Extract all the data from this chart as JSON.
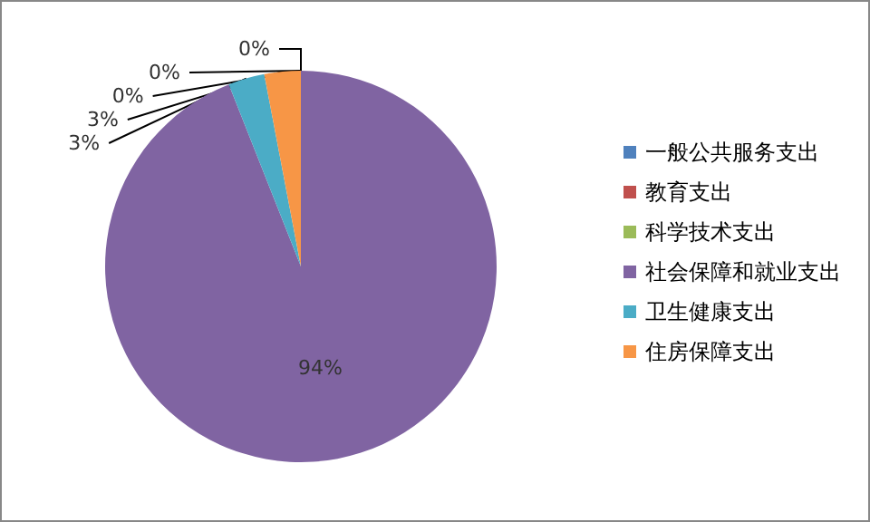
{
  "chart_data": {
    "type": "pie",
    "categories": [
      "一般公共服务支出",
      "教育支出",
      "科学技术支出",
      "社会保障和就业支出",
      "卫生健康支出",
      "住房保障支出"
    ],
    "values": [
      0,
      0,
      0,
      94,
      3,
      3
    ],
    "colors": [
      "#4f81bd",
      "#c0504d",
      "#9bbb59",
      "#8064a2",
      "#4bacc6",
      "#f79646"
    ],
    "value_labels": [
      "0%",
      "0%",
      "0%",
      "94%",
      "3%",
      "3%"
    ],
    "legend": "right"
  }
}
